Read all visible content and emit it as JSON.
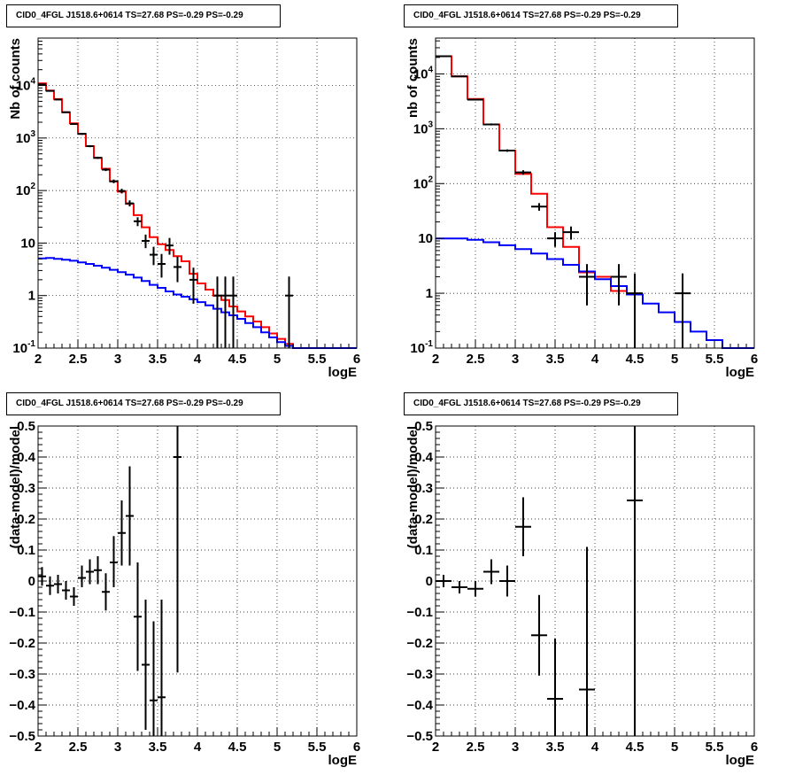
{
  "chart_data": [
    {
      "type": "step",
      "title": "CID0_4FGL J1518.6+0614 TS=27.68 PS=-0.29 PS=-0.29",
      "xlabel": "logE",
      "ylabel": "Nb of counts",
      "xlim": [
        2,
        6
      ],
      "ylim": [
        0.1,
        80000
      ],
      "yscale": "log",
      "grid": true,
      "xticks": [
        "2",
        "2.5",
        "3",
        "3.5",
        "4",
        "4.5",
        "5",
        "5.5",
        "6"
      ],
      "yticks": [
        {
          "value": 0.1,
          "label": "10",
          "sup": "-1"
        },
        {
          "value": 1,
          "label": "1",
          "sup": ""
        },
        {
          "value": 10,
          "label": "10",
          "sup": ""
        },
        {
          "value": 100,
          "label": "10",
          "sup": "2"
        },
        {
          "value": 1000,
          "label": "10",
          "sup": "3"
        },
        {
          "value": 10000,
          "label": "10",
          "sup": "4"
        }
      ],
      "series": [
        {
          "color": "#ff0000",
          "edges": [
            2.0,
            2.1,
            2.2,
            2.3,
            2.4,
            2.5,
            2.6,
            2.7,
            2.8,
            2.9,
            3.0,
            3.1,
            3.2,
            3.3,
            3.4,
            3.5,
            3.6,
            3.7,
            3.8,
            3.9,
            4.0,
            4.1,
            4.2,
            4.3,
            4.4,
            4.5,
            4.6,
            4.7,
            4.8,
            4.9,
            5.0,
            5.1,
            5.2,
            5.3,
            5.4,
            5.5,
            5.6,
            5.7,
            5.8,
            5.9,
            6.0
          ],
          "values": [
            11000,
            8000,
            5500,
            3100,
            1900,
            1200,
            700,
            420,
            260,
            150,
            95,
            56,
            34,
            20,
            13,
            9.5,
            7.4,
            5.6,
            4.5,
            2.6,
            1.7,
            1.3,
            1.0,
            0.82,
            0.62,
            0.5,
            0.4,
            0.32,
            0.25,
            0.19,
            0.15,
            0.12,
            0.095,
            0.09,
            0.09,
            0.09,
            0.09,
            0.09,
            0.09,
            0.09
          ]
        },
        {
          "color": "#0000ff",
          "edges": [
            2.0,
            2.1,
            2.2,
            2.3,
            2.4,
            2.5,
            2.6,
            2.7,
            2.8,
            2.9,
            3.0,
            3.1,
            3.2,
            3.3,
            3.4,
            3.5,
            3.6,
            3.7,
            3.8,
            3.9,
            4.0,
            4.1,
            4.2,
            4.3,
            4.4,
            4.5,
            4.6,
            4.7,
            4.8,
            4.9,
            5.0,
            5.1,
            5.2,
            5.3,
            5.4,
            5.5,
            5.6,
            5.7,
            5.8,
            5.9,
            6.0
          ],
          "values": [
            5.1,
            5.2,
            5.0,
            4.8,
            4.6,
            4.3,
            4.0,
            3.7,
            3.4,
            3.1,
            2.8,
            2.5,
            2.2,
            1.9,
            1.6,
            1.4,
            1.2,
            1.05,
            0.95,
            0.85,
            0.75,
            0.65,
            0.56,
            0.48,
            0.42,
            0.36,
            0.3,
            0.25,
            0.2,
            0.16,
            0.13,
            0.11,
            0.095,
            0.09,
            0.09,
            0.09,
            0.09,
            0.09,
            0.09,
            0.09
          ]
        }
      ],
      "points": [
        {
          "x": 2.05,
          "y": 10500,
          "xerr": 0.05,
          "lo": 10300,
          "hi": 10700
        },
        {
          "x": 2.15,
          "y": 7900,
          "xerr": 0.05,
          "lo": 7750,
          "hi": 8050
        },
        {
          "x": 2.25,
          "y": 5400,
          "xerr": 0.05,
          "lo": 5280,
          "hi": 5520
        },
        {
          "x": 2.35,
          "y": 3100,
          "xerr": 0.05,
          "lo": 3000,
          "hi": 3200
        },
        {
          "x": 2.45,
          "y": 1850,
          "xerr": 0.05,
          "lo": 1780,
          "hi": 1920
        },
        {
          "x": 2.55,
          "y": 1200,
          "xerr": 0.05,
          "lo": 1150,
          "hi": 1250
        },
        {
          "x": 2.65,
          "y": 700,
          "xerr": 0.05,
          "lo": 670,
          "hi": 730
        },
        {
          "x": 2.75,
          "y": 420,
          "xerr": 0.05,
          "lo": 400,
          "hi": 440
        },
        {
          "x": 2.85,
          "y": 250,
          "xerr": 0.05,
          "lo": 235,
          "hi": 265
        },
        {
          "x": 2.95,
          "y": 150,
          "xerr": 0.05,
          "lo": 138,
          "hi": 162
        },
        {
          "x": 3.05,
          "y": 98,
          "xerr": 0.05,
          "lo": 88,
          "hi": 108
        },
        {
          "x": 3.15,
          "y": 57,
          "xerr": 0.05,
          "lo": 50,
          "hi": 65
        },
        {
          "x": 3.25,
          "y": 26,
          "xerr": 0.05,
          "lo": 21,
          "hi": 31
        },
        {
          "x": 3.35,
          "y": 11,
          "xerr": 0.05,
          "lo": 8,
          "hi": 14.5
        },
        {
          "x": 3.45,
          "y": 6,
          "xerr": 0.05,
          "lo": 3.8,
          "hi": 8.5
        },
        {
          "x": 3.55,
          "y": 4,
          "xerr": 0.05,
          "lo": 2.2,
          "hi": 6.2
        },
        {
          "x": 3.65,
          "y": 9,
          "xerr": 0.05,
          "lo": 6,
          "hi": 12.5
        },
        {
          "x": 3.75,
          "y": 3.5,
          "xerr": 0.05,
          "lo": 1.8,
          "hi": 5.5
        },
        {
          "x": 3.95,
          "y": 2,
          "xerr": 0.05,
          "lo": 0.7,
          "hi": 3.4
        },
        {
          "x": 4.25,
          "y": 1,
          "xerr": 0.05,
          "lo": 0.1,
          "hi": 2.3
        },
        {
          "x": 4.35,
          "y": 1,
          "xerr": 0.05,
          "lo": 0.1,
          "hi": 2.3
        },
        {
          "x": 4.45,
          "y": 1,
          "xerr": 0.05,
          "lo": 0.1,
          "hi": 2.3
        },
        {
          "x": 5.15,
          "y": 1,
          "xerr": 0.05,
          "lo": 0.1,
          "hi": 2.3
        }
      ]
    },
    {
      "type": "step",
      "title": "CID0_4FGL J1518.6+0614 TS=27.68 PS=-0.29 PS=-0.29",
      "xlabel": "logE",
      "ylabel": "nb of counts",
      "xlim": [
        2,
        6
      ],
      "ylim": [
        0.1,
        45000
      ],
      "yscale": "log",
      "grid": true,
      "xticks": [
        "2",
        "2.5",
        "3",
        "3.5",
        "4",
        "4.5",
        "5",
        "5.5",
        "6"
      ],
      "yticks": [
        {
          "value": 0.1,
          "label": "10",
          "sup": "-1"
        },
        {
          "value": 1,
          "label": "1",
          "sup": ""
        },
        {
          "value": 10,
          "label": "10",
          "sup": ""
        },
        {
          "value": 100,
          "label": "10",
          "sup": "2"
        },
        {
          "value": 1000,
          "label": "10",
          "sup": "3"
        },
        {
          "value": 10000,
          "label": "10",
          "sup": "4"
        }
      ],
      "series": [
        {
          "color": "#ff0000",
          "edges": [
            2.0,
            2.2,
            2.4,
            2.6,
            2.8,
            3.0,
            3.2,
            3.4,
            3.6,
            3.8,
            4.0,
            4.2,
            4.4
          ],
          "values": [
            21000,
            9000,
            3500,
            1200,
            400,
            150,
            65,
            16,
            7,
            2.4,
            2.0,
            1.1
          ]
        },
        {
          "color": "#0000ff",
          "edges": [
            2.0,
            2.2,
            2.4,
            2.6,
            2.8,
            3.0,
            3.2,
            3.4,
            3.6,
            3.8,
            4.0,
            4.2,
            4.4,
            4.6,
            4.8,
            5.0,
            5.2,
            5.4,
            5.6,
            5.8,
            6.0
          ],
          "values": [
            10,
            10,
            9.4,
            8.5,
            7.5,
            6.4,
            5.3,
            4.2,
            3.3,
            2.5,
            1.8,
            1.35,
            0.95,
            0.65,
            0.45,
            0.3,
            0.2,
            0.14,
            0.1,
            0.1
          ]
        }
      ],
      "points": [
        {
          "x": 2.1,
          "y": 21000,
          "xerr": 0.1,
          "lo": 20700,
          "hi": 21300
        },
        {
          "x": 2.3,
          "y": 9000,
          "xerr": 0.1,
          "lo": 8800,
          "hi": 9200
        },
        {
          "x": 2.5,
          "y": 3400,
          "xerr": 0.1,
          "lo": 3280,
          "hi": 3520
        },
        {
          "x": 2.7,
          "y": 1200,
          "xerr": 0.1,
          "lo": 1150,
          "hi": 1250
        },
        {
          "x": 2.9,
          "y": 400,
          "xerr": 0.1,
          "lo": 380,
          "hi": 420
        },
        {
          "x": 3.1,
          "y": 160,
          "xerr": 0.1,
          "lo": 145,
          "hi": 175
        },
        {
          "x": 3.3,
          "y": 38,
          "xerr": 0.1,
          "lo": 32,
          "hi": 44
        },
        {
          "x": 3.5,
          "y": 10,
          "xerr": 0.1,
          "lo": 7,
          "hi": 13
        },
        {
          "x": 3.7,
          "y": 13,
          "xerr": 0.1,
          "lo": 9.5,
          "hi": 16.5
        },
        {
          "x": 3.9,
          "y": 2,
          "xerr": 0.1,
          "lo": 0.6,
          "hi": 3.4
        },
        {
          "x": 4.3,
          "y": 2,
          "xerr": 0.1,
          "lo": 0.6,
          "hi": 3.4
        },
        {
          "x": 4.5,
          "y": 1,
          "xerr": 0.1,
          "lo": 0.1,
          "hi": 2.3
        },
        {
          "x": 5.1,
          "y": 1,
          "xerr": 0.1,
          "lo": 0.1,
          "hi": 2.3
        }
      ]
    },
    {
      "type": "scatter",
      "title": "CID0_4FGL J1518.6+0614 TS=27.68 PS=-0.29 PS=-0.29",
      "xlabel": "logE",
      "ylabel": "(data-model)/model",
      "xlim": [
        2,
        6
      ],
      "ylim": [
        -0.5,
        0.5
      ],
      "yscale": "linear",
      "grid": true,
      "xticks": [
        "2",
        "2.5",
        "3",
        "3.5",
        "4",
        "4.5",
        "5",
        "5.5",
        "6"
      ],
      "yticks": [
        {
          "value": -0.5,
          "label": "−0.5"
        },
        {
          "value": -0.4,
          "label": "−0.4"
        },
        {
          "value": -0.3,
          "label": "−0.3"
        },
        {
          "value": -0.2,
          "label": "−0.2"
        },
        {
          "value": -0.1,
          "label": "−0.1"
        },
        {
          "value": 0,
          "label": "0"
        },
        {
          "value": 0.1,
          "label": "0.1"
        },
        {
          "value": 0.2,
          "label": "0.2"
        },
        {
          "value": 0.3,
          "label": "0.3"
        },
        {
          "value": 0.4,
          "label": "0.4"
        },
        {
          "value": 0.5,
          "label": "0.5"
        }
      ],
      "points": [
        {
          "x": 2.05,
          "y": 0.015,
          "xerr": 0.05,
          "lo": -0.015,
          "hi": 0.045
        },
        {
          "x": 2.15,
          "y": -0.015,
          "xerr": 0.05,
          "lo": -0.045,
          "hi": 0.015
        },
        {
          "x": 2.25,
          "y": -0.01,
          "xerr": 0.05,
          "lo": -0.04,
          "hi": 0.02
        },
        {
          "x": 2.35,
          "y": -0.03,
          "xerr": 0.05,
          "lo": -0.06,
          "hi": 0.0
        },
        {
          "x": 2.45,
          "y": -0.05,
          "xerr": 0.05,
          "lo": -0.08,
          "hi": -0.02
        },
        {
          "x": 2.55,
          "y": 0.01,
          "xerr": 0.05,
          "lo": -0.02,
          "hi": 0.05
        },
        {
          "x": 2.65,
          "y": 0.03,
          "xerr": 0.05,
          "lo": -0.01,
          "hi": 0.07
        },
        {
          "x": 2.75,
          "y": 0.035,
          "xerr": 0.05,
          "lo": -0.01,
          "hi": 0.08
        },
        {
          "x": 2.85,
          "y": -0.035,
          "xerr": 0.05,
          "lo": -0.095,
          "hi": 0.025
        },
        {
          "x": 2.95,
          "y": 0.06,
          "xerr": 0.05,
          "lo": -0.02,
          "hi": 0.145
        },
        {
          "x": 3.05,
          "y": 0.155,
          "xerr": 0.05,
          "lo": 0.05,
          "hi": 0.26
        },
        {
          "x": 3.15,
          "y": 0.21,
          "xerr": 0.05,
          "lo": 0.05,
          "hi": 0.37
        },
        {
          "x": 3.25,
          "y": -0.115,
          "xerr": 0.05,
          "lo": -0.29,
          "hi": 0.06
        },
        {
          "x": 3.35,
          "y": -0.27,
          "xerr": 0.05,
          "lo": -0.48,
          "hi": -0.06
        },
        {
          "x": 3.45,
          "y": -0.385,
          "xerr": 0.05,
          "lo": -0.5,
          "hi": -0.13
        },
        {
          "x": 3.55,
          "y": -0.375,
          "xerr": 0.05,
          "lo": -0.5,
          "hi": -0.06
        },
        {
          "x": 3.75,
          "y": 0.4,
          "xerr": 0.05,
          "lo": -0.295,
          "hi": 0.5
        }
      ]
    },
    {
      "type": "scatter",
      "title": "CID0_4FGL J1518.6+0614 TS=27.68 PS=-0.29 PS=-0.29",
      "xlabel": "logE",
      "ylabel": "(data-model)/model",
      "xlim": [
        2,
        6
      ],
      "ylim": [
        -0.5,
        0.5
      ],
      "yscale": "linear",
      "grid": true,
      "xticks": [
        "2",
        "2.5",
        "3",
        "3.5",
        "4",
        "4.5",
        "5",
        "5.5",
        "6"
      ],
      "yticks": [
        {
          "value": -0.5,
          "label": "−0.5"
        },
        {
          "value": -0.4,
          "label": "−0.4"
        },
        {
          "value": -0.3,
          "label": "−0.3"
        },
        {
          "value": -0.2,
          "label": "−0.2"
        },
        {
          "value": -0.1,
          "label": "−0.1"
        },
        {
          "value": 0,
          "label": "0"
        },
        {
          "value": 0.1,
          "label": "0.1"
        },
        {
          "value": 0.2,
          "label": "0.2"
        },
        {
          "value": 0.3,
          "label": "0.3"
        },
        {
          "value": 0.4,
          "label": "0.4"
        },
        {
          "value": 0.5,
          "label": "0.5"
        }
      ],
      "points": [
        {
          "x": 2.1,
          "y": 0.0,
          "xerr": 0.1,
          "lo": -0.02,
          "hi": 0.02
        },
        {
          "x": 2.3,
          "y": -0.02,
          "xerr": 0.1,
          "lo": -0.04,
          "hi": 0.0
        },
        {
          "x": 2.5,
          "y": -0.025,
          "xerr": 0.1,
          "lo": -0.05,
          "hi": 0.0
        },
        {
          "x": 2.7,
          "y": 0.03,
          "xerr": 0.1,
          "lo": -0.01,
          "hi": 0.07
        },
        {
          "x": 2.9,
          "y": 0.0,
          "xerr": 0.1,
          "lo": -0.05,
          "hi": 0.05
        },
        {
          "x": 3.1,
          "y": 0.175,
          "xerr": 0.1,
          "lo": 0.08,
          "hi": 0.27
        },
        {
          "x": 3.3,
          "y": -0.175,
          "xerr": 0.1,
          "lo": -0.305,
          "hi": -0.045
        },
        {
          "x": 3.5,
          "y": -0.38,
          "xerr": 0.1,
          "lo": -0.5,
          "hi": -0.185
        },
        {
          "x": 3.9,
          "y": -0.35,
          "xerr": 0.1,
          "lo": -0.5,
          "hi": 0.11
        },
        {
          "x": 4.5,
          "y": 0.26,
          "xerr": 0.1,
          "lo": -0.5,
          "hi": 0.5
        }
      ]
    }
  ]
}
